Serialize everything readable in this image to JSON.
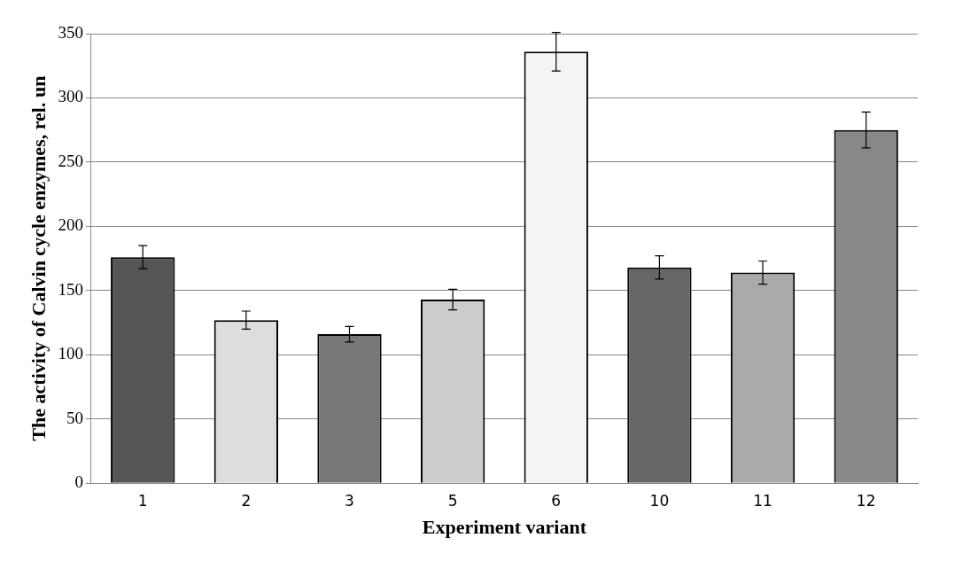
{
  "chart_data": {
    "type": "bar",
    "xlabel": "Experiment variant",
    "ylabel": "The activity of Calvin cycle enzymes, rel. un",
    "categories": [
      "1",
      "2",
      "3",
      "5",
      "6",
      "10",
      "11",
      "12"
    ],
    "values": [
      176,
      127,
      116,
      143,
      336,
      168,
      164,
      275
    ],
    "errors": [
      9,
      7,
      6,
      8,
      15,
      9,
      9,
      14
    ],
    "colors": [
      "#555555",
      "#dddddd",
      "#777777",
      "#cccccc",
      "#f4f4f4",
      "#666666",
      "#aaaaaa",
      "#888888"
    ],
    "ylim": [
      0,
      350
    ],
    "yticks": [
      0,
      50,
      100,
      150,
      200,
      250,
      300,
      350
    ],
    "grid": "y",
    "legend": false
  }
}
